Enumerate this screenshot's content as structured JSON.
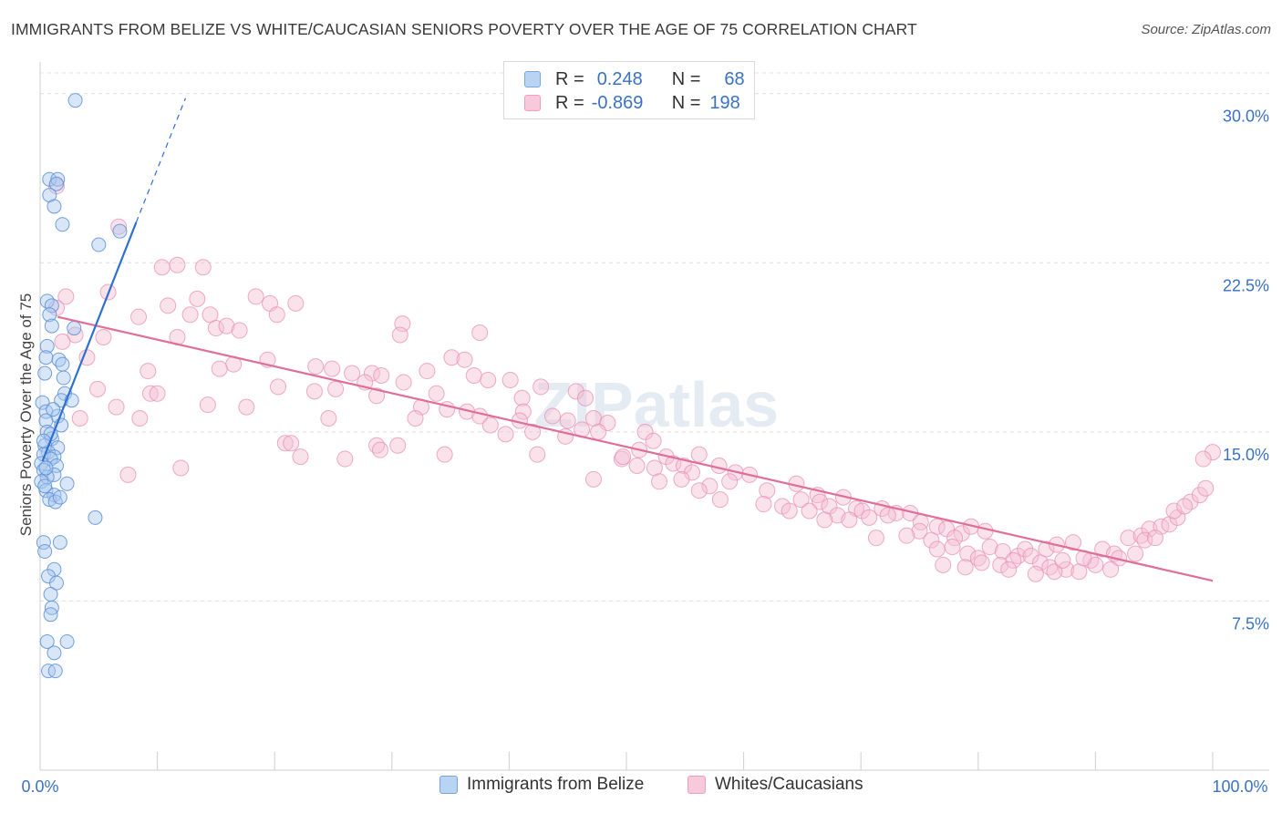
{
  "title": "IMMIGRANTS FROM BELIZE VS WHITE/CAUCASIAN SENIORS POVERTY OVER THE AGE OF 75 CORRELATION CHART",
  "source": "Source: ZipAtlas.com",
  "watermark": "ZIPatlas",
  "legend_top": {
    "rows": [
      {
        "r_label": "R =",
        "r_value": "0.248",
        "n_label": "N =",
        "n_value": "68"
      },
      {
        "r_label": "R =",
        "r_value": "-0.869",
        "n_label": "N =",
        "n_value": "198"
      }
    ]
  },
  "colors": {
    "blue_fill": "#a9c8f0",
    "blue_stroke": "#5b8fd6",
    "blue_line": "#2f6fcf",
    "pink_fill": "#f5bfd3",
    "pink_stroke": "#ea8fb1",
    "pink_line": "#e06e9a",
    "axis_label": "#3a72c4"
  },
  "chart_data": {
    "type": "scatter",
    "title": "IMMIGRANTS FROM BELIZE VS WHITE/CAUCASIAN SENIORS POVERTY OVER THE AGE OF 75 CORRELATION CHART",
    "xlabel": "",
    "ylabel": "Seniors Poverty Over the Age of 75",
    "xlim": [
      0,
      100
    ],
    "ylim": [
      0,
      31
    ],
    "x_tick_labels": [
      "0.0%",
      "100.0%"
    ],
    "y_ticks": [
      7.5,
      15.0,
      22.5,
      30.0
    ],
    "y_tick_labels": [
      "7.5%",
      "15.0%",
      "22.5%",
      "30.0%"
    ],
    "grid": true,
    "legend_position": "bottom",
    "series": [
      {
        "name": "Immigrants from Belize",
        "color": "#a9c8f0",
        "trend": {
          "x": [
            0.2,
            8.2
          ],
          "y": [
            13.7,
            24.3
          ],
          "dashed_to": [
            12.4,
            29.8
          ]
        },
        "points": [
          [
            3.0,
            29.7
          ],
          [
            0.8,
            26.2
          ],
          [
            1.5,
            26.2
          ],
          [
            1.4,
            26.0
          ],
          [
            0.8,
            25.5
          ],
          [
            1.2,
            25.0
          ],
          [
            1.9,
            24.2
          ],
          [
            6.8,
            23.9
          ],
          [
            5.0,
            23.3
          ],
          [
            0.6,
            20.8
          ],
          [
            1.0,
            20.6
          ],
          [
            0.8,
            20.2
          ],
          [
            1.0,
            19.7
          ],
          [
            2.9,
            19.6
          ],
          [
            0.6,
            18.8
          ],
          [
            0.5,
            18.3
          ],
          [
            1.6,
            18.2
          ],
          [
            1.9,
            18.0
          ],
          [
            0.4,
            17.6
          ],
          [
            2.0,
            17.4
          ],
          [
            2.1,
            16.7
          ],
          [
            1.8,
            16.4
          ],
          [
            0.2,
            16.3
          ],
          [
            2.7,
            16.4
          ],
          [
            0.5,
            15.9
          ],
          [
            1.5,
            15.7
          ],
          [
            0.5,
            15.5
          ],
          [
            1.8,
            15.3
          ],
          [
            0.6,
            15.0
          ],
          [
            1.0,
            14.7
          ],
          [
            0.4,
            14.4
          ],
          [
            1.5,
            14.3
          ],
          [
            0.7,
            14.1
          ],
          [
            0.3,
            14.0
          ],
          [
            1.2,
            13.9
          ],
          [
            0.9,
            13.8
          ],
          [
            0.1,
            13.6
          ],
          [
            1.4,
            13.5
          ],
          [
            0.3,
            13.3
          ],
          [
            1.2,
            13.1
          ],
          [
            0.6,
            13.0
          ],
          [
            0.1,
            12.8
          ],
          [
            2.3,
            12.7
          ],
          [
            0.5,
            12.4
          ],
          [
            1.2,
            12.2
          ],
          [
            0.8,
            12.0
          ],
          [
            1.3,
            11.9
          ],
          [
            4.7,
            11.2
          ],
          [
            0.3,
            10.1
          ],
          [
            1.7,
            10.1
          ],
          [
            0.4,
            9.7
          ],
          [
            1.2,
            8.9
          ],
          [
            0.7,
            8.6
          ],
          [
            1.4,
            8.3
          ],
          [
            0.9,
            7.8
          ],
          [
            1.0,
            7.2
          ],
          [
            0.9,
            6.9
          ],
          [
            0.6,
            5.7
          ],
          [
            2.3,
            5.7
          ],
          [
            1.2,
            5.2
          ],
          [
            0.7,
            4.4
          ],
          [
            1.3,
            4.4
          ],
          [
            0.5,
            13.4
          ],
          [
            0.9,
            14.9
          ],
          [
            1.7,
            12.1
          ],
          [
            0.3,
            14.6
          ],
          [
            1.1,
            16.0
          ],
          [
            0.4,
            12.6
          ]
        ]
      },
      {
        "name": "Whites/Caucasians",
        "color": "#f5bfd3",
        "trend": {
          "x": [
            1.5,
            100
          ],
          "y": [
            20.1,
            8.4
          ]
        },
        "points": [
          [
            1.4,
            25.9
          ],
          [
            6.7,
            24.1
          ],
          [
            10.4,
            22.3
          ],
          [
            11.7,
            22.4
          ],
          [
            13.9,
            22.3
          ],
          [
            2.2,
            21.0
          ],
          [
            1.4,
            20.5
          ],
          [
            5.8,
            21.2
          ],
          [
            10.9,
            20.6
          ],
          [
            13.4,
            20.9
          ],
          [
            18.4,
            21.0
          ],
          [
            19.6,
            20.7
          ],
          [
            21.8,
            20.7
          ],
          [
            14.5,
            20.2
          ],
          [
            8.4,
            20.1
          ],
          [
            12.8,
            20.2
          ],
          [
            15.0,
            19.6
          ],
          [
            15.9,
            19.7
          ],
          [
            20.2,
            20.2
          ],
          [
            17.0,
            19.5
          ],
          [
            3.0,
            19.3
          ],
          [
            5.4,
            19.2
          ],
          [
            11.7,
            19.2
          ],
          [
            1.9,
            19.0
          ],
          [
            30.9,
            19.8
          ],
          [
            30.7,
            19.3
          ],
          [
            37.5,
            19.4
          ],
          [
            4.0,
            18.3
          ],
          [
            19.4,
            18.2
          ],
          [
            16.5,
            18.0
          ],
          [
            15.3,
            17.8
          ],
          [
            23.5,
            17.9
          ],
          [
            28.3,
            17.6
          ],
          [
            29.1,
            17.5
          ],
          [
            24.9,
            17.8
          ],
          [
            27.7,
            17.2
          ],
          [
            33.0,
            17.7
          ],
          [
            35.1,
            18.3
          ],
          [
            36.2,
            18.2
          ],
          [
            37.0,
            17.5
          ],
          [
            38.2,
            17.3
          ],
          [
            40.1,
            17.3
          ],
          [
            26.6,
            17.6
          ],
          [
            31.0,
            17.2
          ],
          [
            33.8,
            16.7
          ],
          [
            28.7,
            16.6
          ],
          [
            9.2,
            17.7
          ],
          [
            4.9,
            16.9
          ],
          [
            20.3,
            17.0
          ],
          [
            25.2,
            16.9
          ],
          [
            23.4,
            16.8
          ],
          [
            9.4,
            16.7
          ],
          [
            10.0,
            16.7
          ],
          [
            42.7,
            17.0
          ],
          [
            45.7,
            16.8
          ],
          [
            41.1,
            16.5
          ],
          [
            46.5,
            16.5
          ],
          [
            6.5,
            16.1
          ],
          [
            14.3,
            16.2
          ],
          [
            17.6,
            16.1
          ],
          [
            32.5,
            16.1
          ],
          [
            34.7,
            16.0
          ],
          [
            36.4,
            15.9
          ],
          [
            37.5,
            15.7
          ],
          [
            41.2,
            15.9
          ],
          [
            40.9,
            15.5
          ],
          [
            43.7,
            15.7
          ],
          [
            45.0,
            15.5
          ],
          [
            47.2,
            15.6
          ],
          [
            46.2,
            15.1
          ],
          [
            48.4,
            15.4
          ],
          [
            32.0,
            15.6
          ],
          [
            8.5,
            15.6
          ],
          [
            3.4,
            15.6
          ],
          [
            24.6,
            15.6
          ],
          [
            42.0,
            15.0
          ],
          [
            38.4,
            15.3
          ],
          [
            39.7,
            14.9
          ],
          [
            44.8,
            14.8
          ],
          [
            47.6,
            15.0
          ],
          [
            51.6,
            15.0
          ],
          [
            52.3,
            14.6
          ],
          [
            20.9,
            14.5
          ],
          [
            21.4,
            14.5
          ],
          [
            28.7,
            14.4
          ],
          [
            29.0,
            14.2
          ],
          [
            30.5,
            14.4
          ],
          [
            49.6,
            13.8
          ],
          [
            51.1,
            14.2
          ],
          [
            53.4,
            13.9
          ],
          [
            56.2,
            14.0
          ],
          [
            22.2,
            13.9
          ],
          [
            26.0,
            13.8
          ],
          [
            34.5,
            14.0
          ],
          [
            42.4,
            14.0
          ],
          [
            49.7,
            13.9
          ],
          [
            50.9,
            13.5
          ],
          [
            52.4,
            13.4
          ],
          [
            54.0,
            13.6
          ],
          [
            54.9,
            13.5
          ],
          [
            55.6,
            13.2
          ],
          [
            57.9,
            13.5
          ],
          [
            59.3,
            13.2
          ],
          [
            12.0,
            13.4
          ],
          [
            7.5,
            13.1
          ],
          [
            47.2,
            12.9
          ],
          [
            52.8,
            12.8
          ],
          [
            54.7,
            12.9
          ],
          [
            57.1,
            12.6
          ],
          [
            58.8,
            12.8
          ],
          [
            60.5,
            13.1
          ],
          [
            62.0,
            12.4
          ],
          [
            64.5,
            12.7
          ],
          [
            66.3,
            12.2
          ],
          [
            56.2,
            12.4
          ],
          [
            58.0,
            12.0
          ],
          [
            61.7,
            11.8
          ],
          [
            63.3,
            11.7
          ],
          [
            64.9,
            12.0
          ],
          [
            66.5,
            11.9
          ],
          [
            67.3,
            11.7
          ],
          [
            68.5,
            12.1
          ],
          [
            63.9,
            11.5
          ],
          [
            65.6,
            11.5
          ],
          [
            68.0,
            11.3
          ],
          [
            69.6,
            11.6
          ],
          [
            70.1,
            11.5
          ],
          [
            71.8,
            11.6
          ],
          [
            73.0,
            11.4
          ],
          [
            74.2,
            11.4
          ],
          [
            75.1,
            11.0
          ],
          [
            66.9,
            11.1
          ],
          [
            69.0,
            11.1
          ],
          [
            70.7,
            11.2
          ],
          [
            72.3,
            11.3
          ],
          [
            76.5,
            10.8
          ],
          [
            77.3,
            10.7
          ],
          [
            78.6,
            10.5
          ],
          [
            79.4,
            10.8
          ],
          [
            80.6,
            10.6
          ],
          [
            75.0,
            10.6
          ],
          [
            73.9,
            10.4
          ],
          [
            71.3,
            10.3
          ],
          [
            76.0,
            10.2
          ],
          [
            78.0,
            10.3
          ],
          [
            81.0,
            9.9
          ],
          [
            82.1,
            9.7
          ],
          [
            83.4,
            9.5
          ],
          [
            84.0,
            9.8
          ],
          [
            85.8,
            9.8
          ],
          [
            86.7,
            10.0
          ],
          [
            88.1,
            10.1
          ],
          [
            76.5,
            9.8
          ],
          [
            77.8,
            9.9
          ],
          [
            79.1,
            9.6
          ],
          [
            80.0,
            9.4
          ],
          [
            81.9,
            9.1
          ],
          [
            83.0,
            9.3
          ],
          [
            84.5,
            9.5
          ],
          [
            85.3,
            9.2
          ],
          [
            86.1,
            9.0
          ],
          [
            87.5,
            8.9
          ],
          [
            88.6,
            8.8
          ],
          [
            89.6,
            9.3
          ],
          [
            90.6,
            9.8
          ],
          [
            91.6,
            9.6
          ],
          [
            92.8,
            10.3
          ],
          [
            93.9,
            10.4
          ],
          [
            94.6,
            10.7
          ],
          [
            95.6,
            10.8
          ],
          [
            96.3,
            10.9
          ],
          [
            97.0,
            11.2
          ],
          [
            98.1,
            11.9
          ],
          [
            98.9,
            12.2
          ],
          [
            99.4,
            12.5
          ],
          [
            100.0,
            14.1
          ],
          [
            99.2,
            13.8
          ],
          [
            90.0,
            9.1
          ],
          [
            92.0,
            9.4
          ],
          [
            91.3,
            8.9
          ],
          [
            93.4,
            9.6
          ],
          [
            94.2,
            10.2
          ],
          [
            95.1,
            10.3
          ],
          [
            96.7,
            11.5
          ],
          [
            97.6,
            11.7
          ],
          [
            82.6,
            8.9
          ],
          [
            84.9,
            8.7
          ],
          [
            86.5,
            8.8
          ],
          [
            87.2,
            9.3
          ],
          [
            89.0,
            9.4
          ],
          [
            80.3,
            9.2
          ],
          [
            78.9,
            9.0
          ],
          [
            77.0,
            9.1
          ]
        ]
      }
    ]
  },
  "bottom_legend": [
    {
      "label": "Immigrants from Belize"
    },
    {
      "label": "Whites/Caucasians"
    }
  ]
}
